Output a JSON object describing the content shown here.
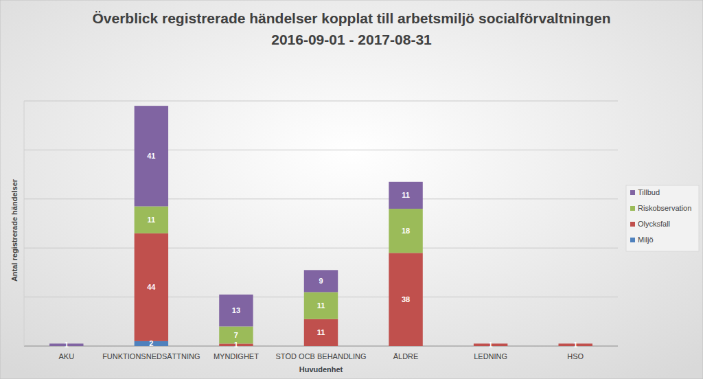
{
  "chart_data": {
    "type": "bar",
    "title": "Överblick registrerade händelser kopplat till arbetsmiljö socialförvaltningen",
    "subtitle": "2016-09-01 - 2017-08-31",
    "x_label": "Huvudenhet",
    "y_label": "Antal registrerade händelser",
    "categories": [
      "AKU",
      "FUNKTIONSNEDSÄTTNING",
      "MYNDIGHET",
      "STÖD OCB BEHANDLING",
      "ÄLDRE",
      "LEDNING",
      "HSO"
    ],
    "series": [
      {
        "name": "Miljö",
        "color": "#4f81bd",
        "values": [
          0,
          2,
          0,
          0,
          0,
          0,
          0
        ]
      },
      {
        "name": "Olycksfall",
        "color": "#c0504d",
        "values": [
          0,
          44,
          1,
          11,
          38,
          1,
          1
        ]
      },
      {
        "name": "Riskobservation",
        "color": "#9bbb59",
        "values": [
          0,
          11,
          7,
          11,
          18,
          0,
          0
        ]
      },
      {
        "name": "Tillbud",
        "color": "#8064a2",
        "values": [
          1,
          41,
          13,
          9,
          11,
          0,
          0
        ]
      }
    ],
    "ylim": [
      0,
      100
    ],
    "yticks": [
      0,
      20,
      40,
      60,
      80,
      100
    ],
    "grid": true,
    "stacked": true,
    "data_labels": true,
    "tick_labels": "x",
    "legend": "right"
  }
}
